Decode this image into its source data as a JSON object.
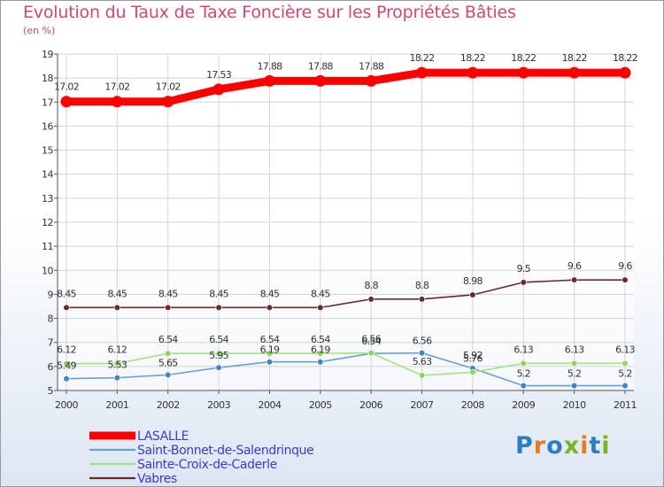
{
  "title": "Evolution du Taux de Taxe Foncière sur les Propriétés Bâties",
  "subtitle": "(en %)",
  "logo": {
    "text": "Proxiti",
    "colors": [
      "#2a7fc0",
      "#e87a1f",
      "#2a7fc0",
      "#7ab51d",
      "#e87a1f",
      "#2a7fc0",
      "#7ab51d"
    ]
  },
  "chart_data": {
    "type": "line",
    "title": "Evolution du Taux de Taxe Foncière sur les Propriétés Bâties",
    "ylabel": "(en %)",
    "xlabel": "",
    "x": [
      "2000",
      "2001",
      "2002",
      "2003",
      "2004",
      "2005",
      "2006",
      "2007",
      "2008",
      "2009",
      "2010",
      "2011"
    ],
    "ylim": [
      5,
      19
    ],
    "yticks": [
      "5",
      "6",
      "7",
      "8",
      "9",
      "10",
      "11",
      "12",
      "13",
      "14",
      "15",
      "16",
      "17",
      "18",
      "19"
    ],
    "grid": true,
    "legend_position": "bottom-left",
    "series": [
      {
        "name": "LASALLE",
        "color": "#ff0000",
        "marker_color": "#ff0000",
        "values": [
          17.02,
          17.02,
          17.02,
          17.53,
          17.88,
          17.88,
          17.88,
          18.22,
          18.22,
          18.22,
          18.22,
          18.22
        ],
        "labels": [
          "17.02",
          "17.02",
          "17.02",
          "17.53",
          "17.88",
          "17.88",
          "17.88",
          "18.22",
          "18.22",
          "18.22",
          "18.22",
          "18.22"
        ]
      },
      {
        "name": "Saint-Bonnet-de-Salendrinque",
        "color": "#6a9fd4",
        "marker_color": "#3d85c6",
        "values": [
          5.49,
          5.53,
          5.65,
          5.95,
          6.19,
          6.19,
          6.54,
          6.56,
          5.92,
          5.2,
          5.2,
          5.2
        ],
        "labels": [
          "5.49",
          "5.53",
          "5.65",
          "5.95",
          "6.19",
          "6.19",
          "6.54",
          "6.56",
          "5.92",
          "5.2",
          "5.2",
          "5.2"
        ]
      },
      {
        "name": "Sainte-Croix-de-Caderle",
        "color": "#a6e27f",
        "marker_color": "#8fd45c",
        "values": [
          6.12,
          6.12,
          6.54,
          6.54,
          6.54,
          6.54,
          6.56,
          5.63,
          5.76,
          6.13,
          6.13,
          6.13
        ],
        "labels": [
          "6.12",
          "6.12",
          "6.54",
          "6.54",
          "6.54",
          "6.54",
          "6.56",
          "5.63",
          "5.76",
          "6.13",
          "6.13",
          "6.13"
        ]
      },
      {
        "name": "Vabres",
        "color": "#6b2a2a",
        "marker_color": "#6b2a2a",
        "values": [
          8.45,
          8.45,
          8.45,
          8.45,
          8.45,
          8.45,
          8.8,
          8.8,
          8.98,
          9.5,
          9.6,
          9.6
        ],
        "labels": [
          "8.45",
          "8.45",
          "8.45",
          "8.45",
          "8.45",
          "8.45",
          "8.8",
          "8.8",
          "8.98",
          "9.5",
          "9.6",
          "9.6"
        ]
      }
    ]
  }
}
